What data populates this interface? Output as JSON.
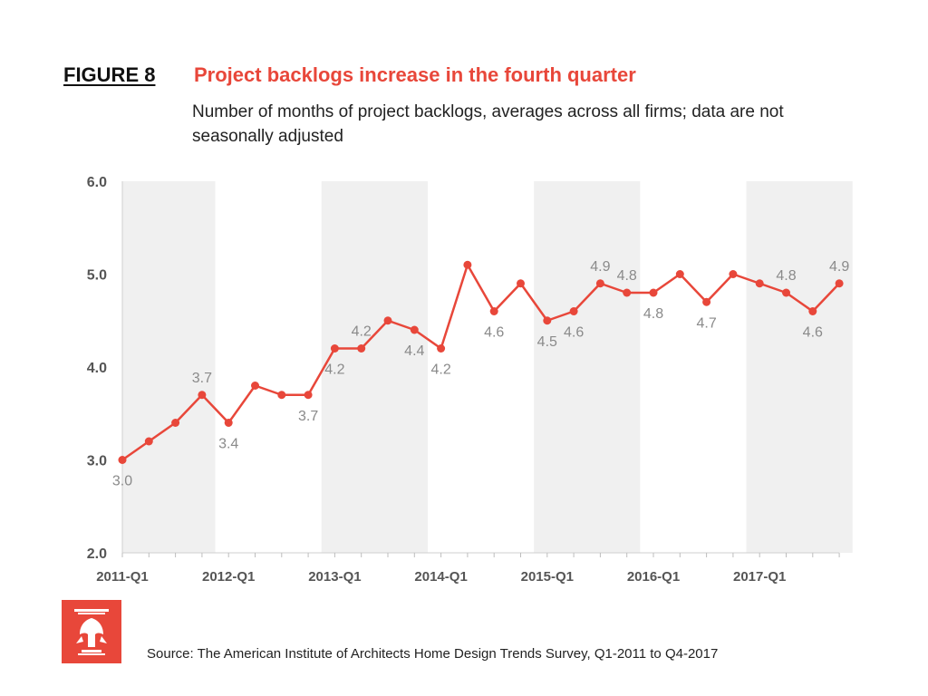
{
  "header": {
    "figure_label": "FIGURE 8",
    "title": "Project backlogs increase in the fourth quarter",
    "subtitle": "Number of months of project backlogs, averages across all firms; data are not seasonally adjusted"
  },
  "footer": {
    "source": "Source: The American Institute of Architects Home Design Trends Survey, Q1-2011 to Q4-2017",
    "logo_icon": "aia-eagle-logo-icon"
  },
  "colors": {
    "line": "#e8473a",
    "band": "#f0f0f0",
    "label": "#8a8a8a",
    "axis": "#555555"
  },
  "chart_data": {
    "type": "line",
    "x": [
      "2011-Q1",
      "2011-Q2",
      "2011-Q3",
      "2011-Q4",
      "2012-Q1",
      "2012-Q2",
      "2012-Q3",
      "2012-Q4",
      "2013-Q1",
      "2013-Q2",
      "2013-Q3",
      "2013-Q4",
      "2014-Q1",
      "2014-Q2",
      "2014-Q3",
      "2014-Q4",
      "2015-Q1",
      "2015-Q2",
      "2015-Q3",
      "2015-Q4",
      "2016-Q1",
      "2016-Q2",
      "2016-Q3",
      "2016-Q4",
      "2017-Q1",
      "2017-Q2",
      "2017-Q3",
      "2017-Q4"
    ],
    "values": [
      3.0,
      3.2,
      3.4,
      3.7,
      3.4,
      3.8,
      3.7,
      3.7,
      4.2,
      4.2,
      4.5,
      4.4,
      4.2,
      5.1,
      4.6,
      4.9,
      4.5,
      4.6,
      4.9,
      4.8,
      4.8,
      5.0,
      4.7,
      5.0,
      4.9,
      4.8,
      4.6,
      4.9
    ],
    "data_labels": [
      {
        "index": 0,
        "text": "3.0",
        "pos": "below"
      },
      {
        "index": 3,
        "text": "3.7",
        "pos": "above"
      },
      {
        "index": 4,
        "text": "3.4",
        "pos": "below"
      },
      {
        "index": 7,
        "text": "3.7",
        "pos": "below"
      },
      {
        "index": 8,
        "text": "4.2",
        "pos": "below"
      },
      {
        "index": 9,
        "text": "4.2",
        "pos": "above"
      },
      {
        "index": 11,
        "text": "4.4",
        "pos": "below"
      },
      {
        "index": 12,
        "text": "4.2",
        "pos": "below"
      },
      {
        "index": 14,
        "text": "4.6",
        "pos": "below"
      },
      {
        "index": 16,
        "text": "4.5",
        "pos": "below"
      },
      {
        "index": 17,
        "text": "4.6",
        "pos": "below"
      },
      {
        "index": 18,
        "text": "4.9",
        "pos": "above"
      },
      {
        "index": 19,
        "text": "4.8",
        "pos": "above"
      },
      {
        "index": 20,
        "text": "4.8",
        "pos": "below"
      },
      {
        "index": 22,
        "text": "4.7",
        "pos": "below"
      },
      {
        "index": 25,
        "text": "4.8",
        "pos": "above"
      },
      {
        "index": 26,
        "text": "4.6",
        "pos": "below"
      },
      {
        "index": 27,
        "text": "4.9",
        "pos": "above"
      }
    ],
    "x_tick_labels": [
      "2011-Q1",
      "2012-Q1",
      "2013-Q1",
      "2014-Q1",
      "2015-Q1",
      "2016-Q1",
      "2017-Q1"
    ],
    "y_ticks": [
      "2.0",
      "3.0",
      "4.0",
      "5.0",
      "6.0"
    ],
    "ylim": [
      2.0,
      6.0
    ],
    "shaded_years": [
      "2011",
      "2013",
      "2015",
      "2017"
    ],
    "grid": false,
    "legend": "none"
  }
}
